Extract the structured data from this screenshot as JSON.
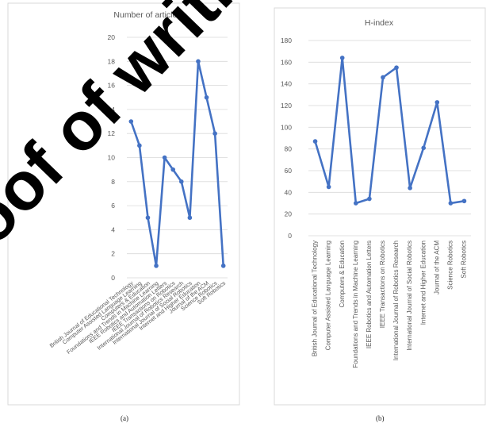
{
  "chart_data": [
    {
      "type": "line",
      "title": "Number of articles",
      "categories": [
        "British Journal of Educational Technology",
        "Computer Assisted Language Learning",
        "Computers & Education",
        "Foundations and Trends in Machine Learning",
        "IEEE Robotics and Automation Letters",
        "IEEE Transactions on Robotics",
        "International Journal of Robotics Research",
        "International Journal of Social Robotics",
        "Internet and Higher Education",
        "Journal of the ACM",
        "Science Robotics",
        "Soft Robotics"
      ],
      "values": [
        13,
        11,
        5,
        1,
        10,
        9,
        8,
        5,
        18,
        15,
        12,
        1
      ],
      "ylim": [
        0,
        20
      ],
      "yticks": [
        0,
        2,
        4,
        6,
        8,
        10,
        12,
        14,
        16,
        18,
        20
      ],
      "grid": true,
      "color": "#4472C4",
      "panel_label": "(a)"
    },
    {
      "type": "line",
      "title": "H-index",
      "categories": [
        "British Journal of Educational Technology",
        "Computer Assisted Language Learning",
        "Computers & Education",
        "Foundations and Trends in Machine Learning",
        "IEEE Robotics and Automation Letters",
        "IEEE Transactions on Robotics",
        "International Journal of Robotics Research",
        "International Journal of Social Robotics",
        "Internet and Higher Education",
        "Journal of the ACM",
        "Science Robotics",
        "Soft Robotics"
      ],
      "values": [
        87,
        45,
        164,
        30,
        34,
        146,
        155,
        44,
        81,
        123,
        30,
        32
      ],
      "ylim": [
        0,
        180
      ],
      "yticks": [
        0,
        20,
        40,
        60,
        80,
        100,
        120,
        140,
        160,
        180
      ],
      "grid": true,
      "color": "#4472C4",
      "panel_label": "(b)"
    }
  ],
  "watermark": {
    "text": "Proof of writing",
    "color": "#000000"
  }
}
